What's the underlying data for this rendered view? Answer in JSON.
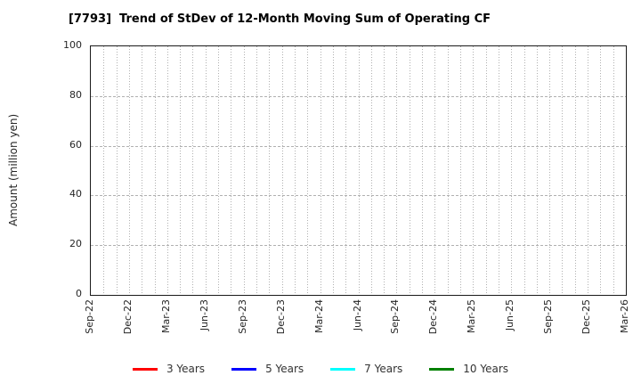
{
  "chart_data": {
    "type": "line",
    "title": "[7793]  Trend of StDev of 12-Month Moving Sum of Operating CF",
    "xlabel": "",
    "ylabel": "Amount (million yen)",
    "ylim": [
      0,
      100
    ],
    "yticks": [
      0,
      20,
      40,
      60,
      80,
      100
    ],
    "x_tick_labels": [
      "Sep-22",
      "Dec-22",
      "Mar-23",
      "Jun-23",
      "Sep-23",
      "Dec-23",
      "Mar-24",
      "Jun-24",
      "Sep-24",
      "Dec-24",
      "Mar-25",
      "Jun-25",
      "Sep-25",
      "Dec-25",
      "Mar-26"
    ],
    "x_total_months": 42,
    "months_per_labeled_tick": 3,
    "grid": "on",
    "grid_minor_vertical": "monthly",
    "plot_is_empty": true,
    "series": [
      {
        "name": "3 Years",
        "color": "#ff0000",
        "values": []
      },
      {
        "name": "5 Years",
        "color": "#0000ff",
        "values": []
      },
      {
        "name": "7 Years",
        "color": "#00ffff",
        "values": []
      },
      {
        "name": "10 Years",
        "color": "#008000",
        "values": []
      }
    ],
    "legend_position": "bottom-center",
    "colors": {
      "grid_line": "#b0b0b0",
      "axis_border": "#1a1a1a",
      "tick_text": "#262626",
      "title_text": "#000000",
      "background": "#ffffff"
    }
  }
}
